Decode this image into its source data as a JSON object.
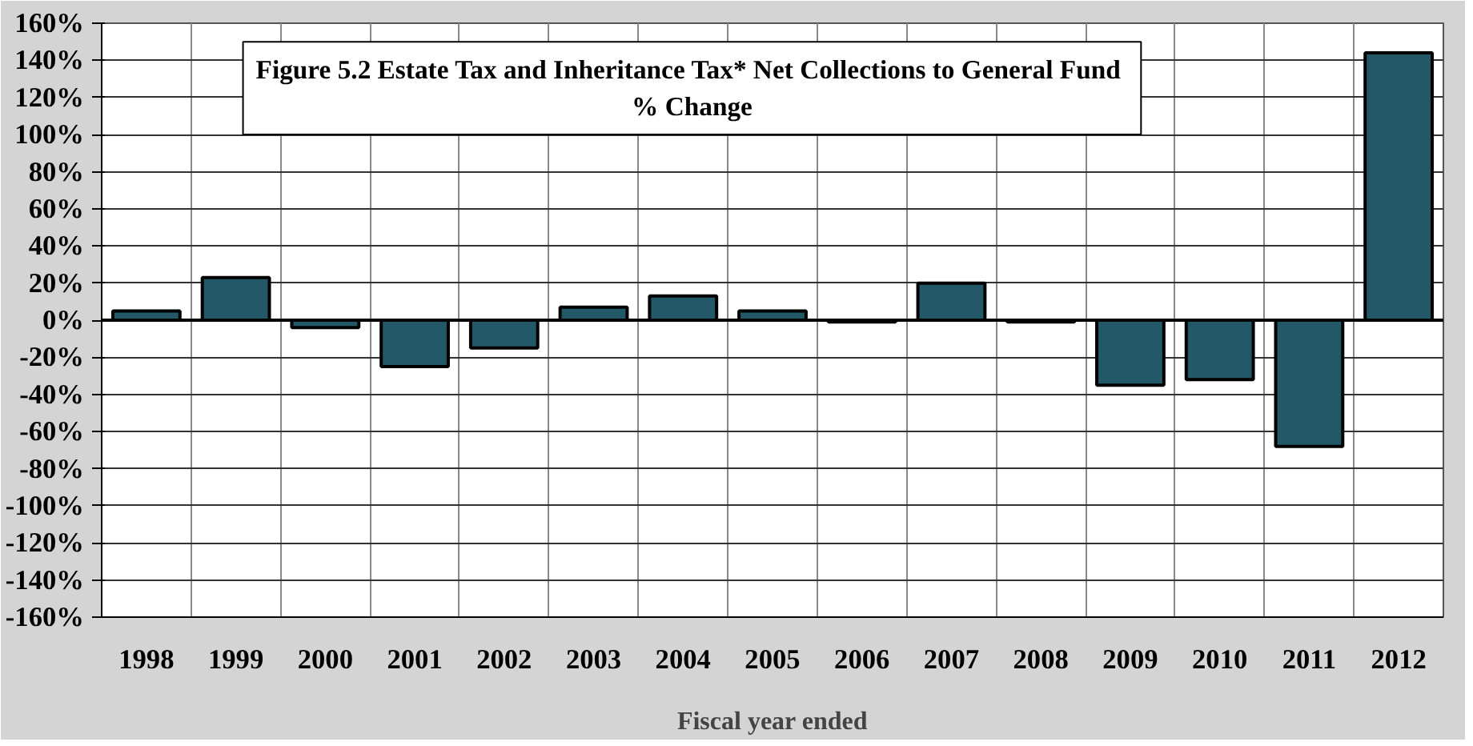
{
  "chart_data": {
    "type": "bar",
    "title": "Figure 5.2  Estate Tax and Inheritance Tax* Net Collections to General Fund",
    "subtitle": "% Change",
    "xlabel": "Fiscal year ended",
    "categories": [
      "1998",
      "1999",
      "2000",
      "2001",
      "2002",
      "2003",
      "2004",
      "2005",
      "2006",
      "2007",
      "2008",
      "2009",
      "2010",
      "2011",
      "2012"
    ],
    "values": [
      5,
      23,
      -4,
      -25,
      -15,
      7,
      13,
      5,
      -1,
      20,
      -1,
      -35,
      -32,
      -68,
      144
    ],
    "color": "#235868",
    "ylim": [
      -160,
      160
    ],
    "yticks": [
      {
        "value": -160,
        "label": "-160%"
      },
      {
        "value": -140,
        "label": "-140%"
      },
      {
        "value": -120,
        "label": "-120%"
      },
      {
        "value": -100,
        "label": "-100%"
      },
      {
        "value": -80,
        "label": "-80%"
      },
      {
        "value": -60,
        "label": "-60%"
      },
      {
        "value": -40,
        "label": "-40%"
      },
      {
        "value": -20,
        "label": "-20%"
      },
      {
        "value": 0,
        "label": "0%"
      },
      {
        "value": 20,
        "label": "20%"
      },
      {
        "value": 40,
        "label": "40%"
      },
      {
        "value": 60,
        "label": "60%"
      },
      {
        "value": 80,
        "label": "80%"
      },
      {
        "value": 100,
        "label": "100%"
      },
      {
        "value": 120,
        "label": "120%"
      },
      {
        "value": 140,
        "label": "140%"
      },
      {
        "value": 160,
        "label": "160%"
      }
    ],
    "grid": true
  }
}
